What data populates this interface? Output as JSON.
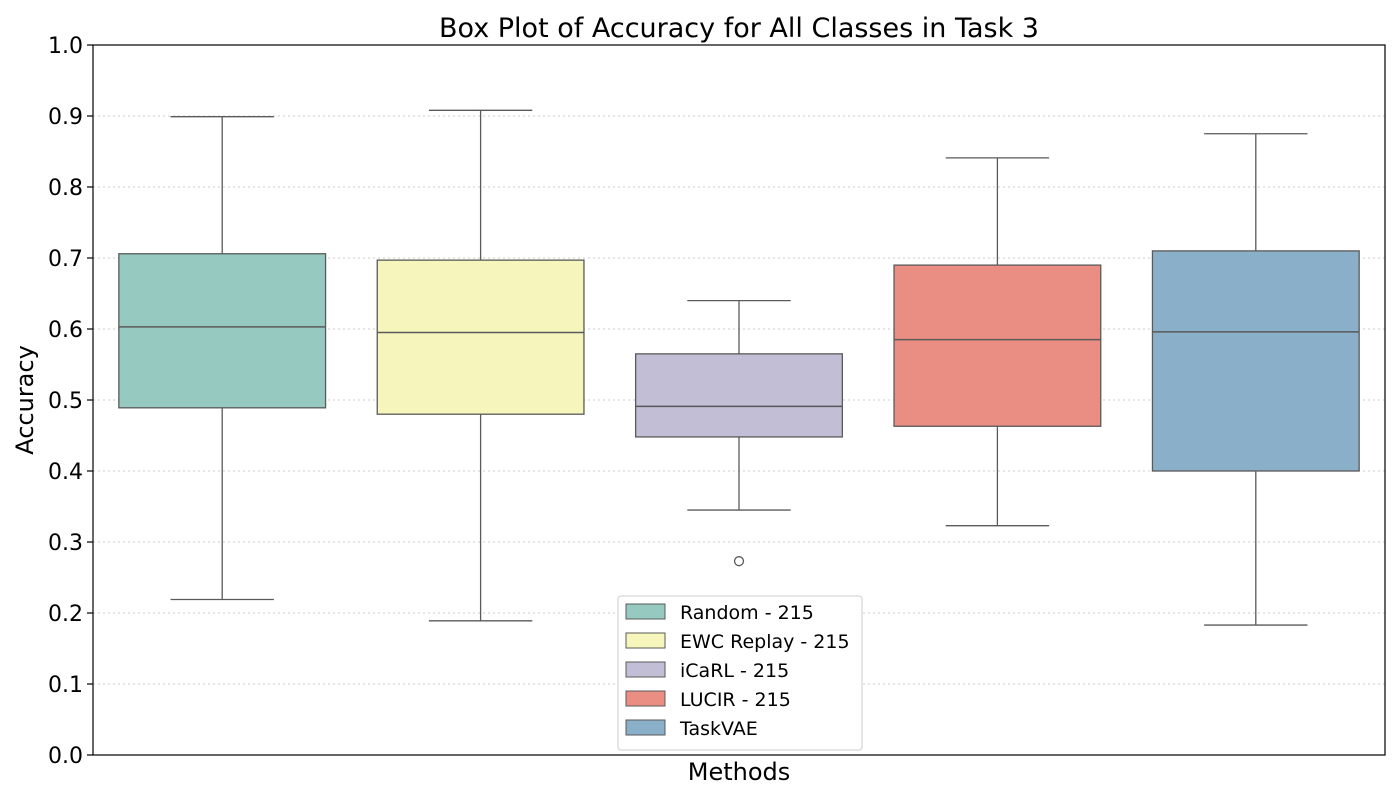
{
  "chart_data": {
    "type": "box",
    "title": "Box Plot of Accuracy for All Classes in Task 3",
    "xlabel": "Methods",
    "ylabel": "Accuracy",
    "ylim": [
      0.0,
      1.0
    ],
    "yticks": [
      "0.0",
      "0.1",
      "0.2",
      "0.3",
      "0.4",
      "0.5",
      "0.6",
      "0.7",
      "0.8",
      "0.9",
      "1.0"
    ],
    "grid": "horizontal dotted",
    "legend_position": "bottom-center",
    "series": [
      {
        "name": "Random - 215",
        "color": "#96cac1",
        "whisker_low": 0.219,
        "q1": 0.489,
        "median": 0.603,
        "q3": 0.706,
        "whisker_high": 0.899,
        "outliers": []
      },
      {
        "name": "EWC Replay - 215",
        "color": "#f6f6bc",
        "whisker_low": 0.189,
        "q1": 0.48,
        "median": 0.595,
        "q3": 0.697,
        "whisker_high": 0.908,
        "outliers": []
      },
      {
        "name": "iCaRL - 215",
        "color": "#c1bed6",
        "whisker_low": 0.345,
        "q1": 0.448,
        "median": 0.491,
        "q3": 0.565,
        "whisker_high": 0.64,
        "outliers": [
          0.273
        ]
      },
      {
        "name": "LUCIR - 215",
        "color": "#ea8e83",
        "whisker_low": 0.323,
        "q1": 0.463,
        "median": 0.585,
        "q3": 0.69,
        "whisker_high": 0.841,
        "outliers": []
      },
      {
        "name": "TaskVAE",
        "color": "#8aafc9",
        "whisker_low": 0.183,
        "q1": 0.4,
        "median": 0.596,
        "q3": 0.71,
        "whisker_high": 0.875,
        "outliers": []
      }
    ]
  }
}
